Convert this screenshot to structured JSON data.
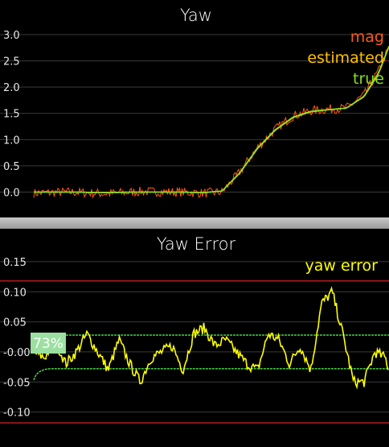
{
  "chart_data": [
    {
      "type": "line",
      "title": "Yaw",
      "ylim": [
        -0.3,
        3.2
      ],
      "xlim": [
        0,
        100
      ],
      "yticks": [
        "3.0",
        "2.5",
        "2.0",
        "1.5",
        "1.0",
        "0.5",
        "0.0"
      ],
      "ytick_values": [
        3.0,
        2.5,
        2.0,
        1.5,
        1.0,
        0.5,
        0.0
      ],
      "legend": {
        "position": "top-right",
        "entries": [
          "mag",
          "estimated",
          "true"
        ]
      },
      "grid": true,
      "series": [
        {
          "name": "mag",
          "color": "#ff5a14",
          "noise": 0.09,
          "x": [
            0,
            10,
            20,
            30,
            40,
            48,
            53,
            58,
            63,
            68,
            73,
            78,
            83,
            88,
            93,
            97,
            100
          ],
          "y": [
            -0.02,
            0.0,
            -0.03,
            0.01,
            0.0,
            -0.02,
            0.0,
            0.38,
            0.85,
            1.2,
            1.45,
            1.55,
            1.58,
            1.6,
            1.85,
            2.3,
            2.75
          ]
        },
        {
          "name": "estimated",
          "color": "#ffc000",
          "noise": 0.0,
          "x": [
            0,
            10,
            20,
            30,
            40,
            48,
            53,
            58,
            63,
            68,
            73,
            78,
            83,
            88,
            93,
            97,
            100
          ],
          "y": [
            0.0,
            0.0,
            -0.01,
            0.0,
            0.0,
            -0.01,
            0.02,
            0.36,
            0.83,
            1.18,
            1.42,
            1.53,
            1.57,
            1.6,
            1.82,
            2.25,
            2.78
          ]
        },
        {
          "name": "true",
          "color": "#88e020",
          "noise": 0.0,
          "x": [
            0,
            10,
            20,
            30,
            40,
            48,
            53,
            58,
            63,
            68,
            73,
            78,
            83,
            88,
            93,
            97,
            100
          ],
          "y": [
            0.0,
            0.0,
            -0.01,
            0.0,
            0.0,
            -0.01,
            0.02,
            0.37,
            0.84,
            1.19,
            1.43,
            1.54,
            1.57,
            1.6,
            1.83,
            2.27,
            2.77
          ]
        }
      ]
    },
    {
      "type": "line",
      "title": "Yaw Error",
      "ylim": [
        -0.13,
        0.17
      ],
      "xlim": [
        0,
        100
      ],
      "yticks": [
        "0.15",
        "0.10",
        "0.05",
        "-0.00",
        "-0.05",
        "-0.10"
      ],
      "ytick_values": [
        0.15,
        0.1,
        0.05,
        0.0,
        -0.05,
        -0.1
      ],
      "legend": {
        "position": "top-right",
        "entries": [
          "yaw error"
        ]
      },
      "badge": "73%",
      "grid": true,
      "thresholds": {
        "red": [
          0.118,
          -0.118
        ],
        "green": [
          0.028,
          -0.028
        ]
      },
      "series": [
        {
          "name": "yaw error",
          "color": "#ffff00",
          "x": [
            0,
            3,
            6,
            9,
            12,
            15,
            18,
            21,
            24,
            27,
            30,
            33,
            36,
            39,
            42,
            45,
            48,
            51,
            54,
            57,
            60,
            63,
            66,
            69,
            72,
            75,
            78,
            81,
            84,
            87,
            90,
            93,
            96,
            99,
            100
          ],
          "y": [
            0.0,
            -0.01,
            0.02,
            -0.02,
            0.0,
            0.03,
            0.0,
            -0.03,
            0.02,
            -0.02,
            -0.05,
            -0.01,
            0.0,
            0.01,
            -0.03,
            0.03,
            0.04,
            0.01,
            0.02,
            0.0,
            -0.02,
            -0.03,
            0.03,
            0.02,
            -0.02,
            0.01,
            -0.03,
            0.08,
            0.1,
            0.03,
            -0.05,
            -0.05,
            0.0,
            -0.01,
            -0.03
          ]
        }
      ]
    }
  ]
}
